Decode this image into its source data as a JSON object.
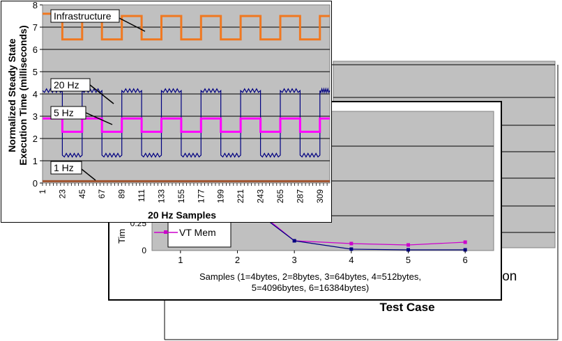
{
  "colors": {
    "plot_bg": "#c0c0c0",
    "infrastructure": "#f07820",
    "hz20": "#000080",
    "hz5": "#ff00ff",
    "hz1": "#a0522d"
  },
  "back_chart": {
    "partial_label": "ion",
    "xlabel": "Test Case"
  },
  "middle_chart": {
    "legend_label": "VT Mem",
    "ylabel_partial": "Tim",
    "xlabel_line1": "Samples (1=4bytes, 2=8bytes, 3=64bytes, 4=512bytes,",
    "xlabel_line2": "5=4096bytes, 6=16384bytes)",
    "yticks": [
      "0",
      "0.25"
    ]
  },
  "chart_data": [
    {
      "type": "line",
      "title": "",
      "xlabel": "20 Hz Samples",
      "ylabel": "Normalized Steady State Execution Time (milliseconds)",
      "ylabel_line1": "Normalized Steady State",
      "ylabel_line2": "Execution Time (milliseconds)",
      "ylim": [
        0,
        8
      ],
      "xlim": [
        1,
        320
      ],
      "yticks": [
        "0",
        "1",
        "2",
        "3",
        "4",
        "5",
        "6",
        "7",
        "8"
      ],
      "xticks": [
        "1",
        "23",
        "45",
        "67",
        "89",
        "111",
        "133",
        "155",
        "177",
        "199",
        "221",
        "243",
        "265",
        "287",
        "309"
      ],
      "grid": true,
      "series": [
        {
          "name": "Infrastructure",
          "pattern": "square",
          "high": 7.5,
          "low": 6.45,
          "period": 44,
          "first_high": 7.6
        },
        {
          "name": "20 Hz",
          "pattern": "square",
          "high": 4.15,
          "low": 1.25,
          "period": 44
        },
        {
          "name": "5 Hz",
          "pattern": "square",
          "high": 2.9,
          "low": 2.3,
          "period": 44
        },
        {
          "name": "1 Hz",
          "pattern": "flat",
          "value": 0.08
        }
      ]
    },
    {
      "type": "line",
      "title": "",
      "xlabel": "Samples (1=4bytes, 2=8bytes, 3=64bytes, 4=512bytes, 5=4096bytes, 6=16384bytes)",
      "x": [
        1,
        2,
        3,
        4,
        5,
        6
      ],
      "xticks": [
        "1",
        "2",
        "3",
        "4",
        "5",
        "6"
      ],
      "ylim": [
        0,
        1
      ],
      "grid": true,
      "series": [
        {
          "name": "VT Mem",
          "values": [
            null,
            0.4,
            0.07,
            0.05,
            0.04,
            0.06
          ]
        },
        {
          "name": "",
          "values": [
            null,
            0.38,
            0.07,
            0.01,
            0.005,
            0.005
          ]
        }
      ]
    }
  ]
}
